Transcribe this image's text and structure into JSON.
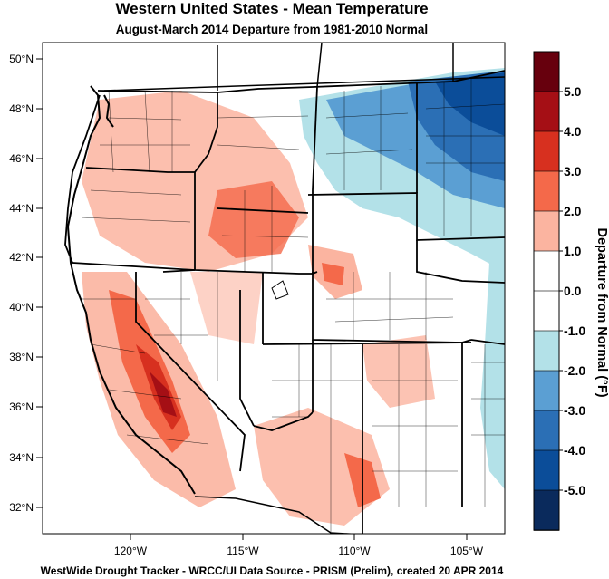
{
  "title": "Western United States - Mean Temperature",
  "subtitle": "August-March 2014  Departure from 1981-2010 Normal",
  "footer": "WestWide Drought Tracker - WRCC/UI  Data Source - PRISM (Prelim), created 20 APR 2014",
  "map": {
    "lat_ticks": [
      "50°N",
      "48°N",
      "46°N",
      "44°N",
      "42°N",
      "40°N",
      "38°N",
      "36°N",
      "34°N",
      "32°N"
    ],
    "lon_ticks": [
      "120°W",
      "115°W",
      "110°W",
      "105°W"
    ]
  },
  "colorbar": {
    "title": "Departure from Normal (°F)",
    "labels": [
      "5.0",
      "4.0",
      "3.0",
      "2.0",
      "1.0",
      "0.0",
      "-1.0",
      "-2.0",
      "-3.0",
      "-4.0",
      "-5.0"
    ],
    "colors": [
      "#67000d",
      "#a50f15",
      "#d7301f",
      "#f4694a",
      "#fbb4a0",
      "#ffffff",
      "#ffffff",
      "#b3e1e8",
      "#5b9fd3",
      "#2b6fb5",
      "#0b4d99",
      "#0a2a5c"
    ]
  }
}
